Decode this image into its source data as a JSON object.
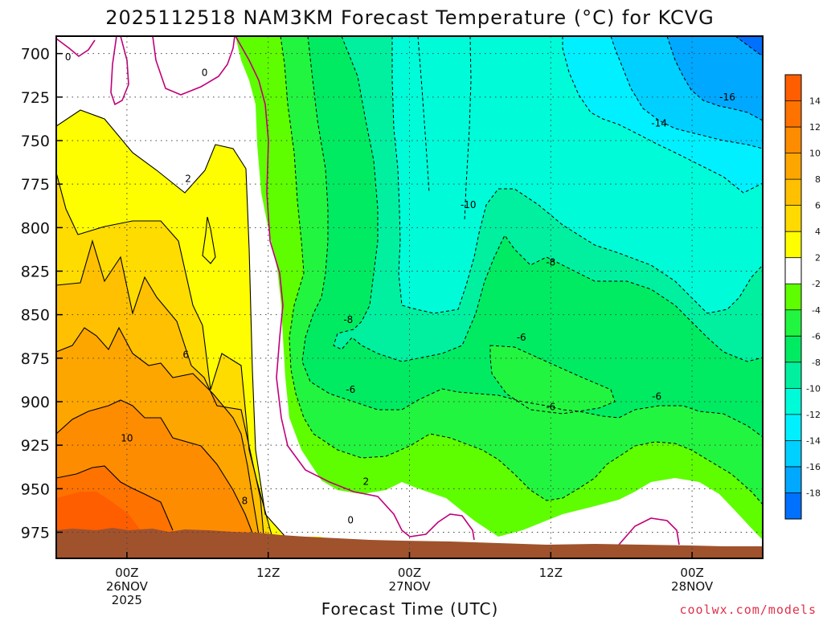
{
  "chart_data": {
    "type": "contour",
    "title": "2025112518 NAM3KM Forecast Temperature (°C) for KCVG",
    "xlabel": "Forecast Time (UTC)",
    "ylabel": "",
    "credit": "coolwx.com/models",
    "y_axis": {
      "units": "hPa",
      "ticks": [
        700,
        725,
        750,
        775,
        800,
        825,
        850,
        875,
        900,
        925,
        950,
        975
      ],
      "ylim": [
        690,
        990
      ],
      "inverted": true
    },
    "x_axis": {
      "units": "hours since 2025-11-25 18Z",
      "ticks": [
        {
          "hour": 6,
          "label1": "00Z",
          "label2": "26NOV",
          "label3": "2025"
        },
        {
          "hour": 18,
          "label1": "12Z",
          "label2": "",
          "label3": ""
        },
        {
          "hour": 30,
          "label1": "00Z",
          "label2": "27NOV",
          "label3": ""
        },
        {
          "hour": 42,
          "label1": "12Z",
          "label2": "",
          "label3": ""
        },
        {
          "hour": 54,
          "label1": "00Z",
          "label2": "28NOV",
          "label3": ""
        }
      ],
      "xlim": [
        0,
        60
      ]
    },
    "grid": "dotted",
    "colorbar": {
      "levels": [
        "14",
        "12",
        "10",
        "8",
        "6",
        "4",
        "2",
        "-2",
        "-4",
        "-6",
        "-8",
        "-10",
        "-12",
        "-14",
        "-16",
        "-18"
      ],
      "colors": [
        "#fe5e00",
        "#fe7200",
        "#fe8c00",
        "#fea600",
        "#fec000",
        "#feda00",
        "#fefe00",
        "#ffffff",
        "#5efe00",
        "#22f540",
        "#00eb62",
        "#00f0a0",
        "#00fbd8",
        "#00f0ff",
        "#00d0ff",
        "#00a8ff",
        "#0070ff"
      ]
    },
    "contour_labels": [
      {
        "text": "0",
        "hour": 1.0,
        "p": 702
      },
      {
        "text": "0",
        "hour": 12.6,
        "p": 711
      },
      {
        "text": "2",
        "hour": 11.2,
        "p": 772
      },
      {
        "text": "6",
        "hour": 11.0,
        "p": 873
      },
      {
        "text": "10",
        "hour": 6.0,
        "p": 921
      },
      {
        "text": "8",
        "hour": 16.0,
        "p": 957
      },
      {
        "text": "0",
        "hour": 25.0,
        "p": 968
      },
      {
        "text": "2",
        "hour": 26.3,
        "p": 946
      },
      {
        "text": "-8",
        "hour": 24.8,
        "p": 853
      },
      {
        "text": "-6",
        "hour": 25.0,
        "p": 893
      },
      {
        "text": "-10",
        "hour": 35.0,
        "p": 787
      },
      {
        "text": "-8",
        "hour": 42.0,
        "p": 820
      },
      {
        "text": "-6",
        "hour": 39.5,
        "p": 863
      },
      {
        "text": "-6",
        "hour": 42.0,
        "p": 903
      },
      {
        "text": "-6",
        "hour": 51.0,
        "p": 897
      },
      {
        "text": "-14",
        "hour": 51.2,
        "p": 740
      },
      {
        "text": "-16",
        "hour": 57.0,
        "p": 725
      }
    ]
  }
}
